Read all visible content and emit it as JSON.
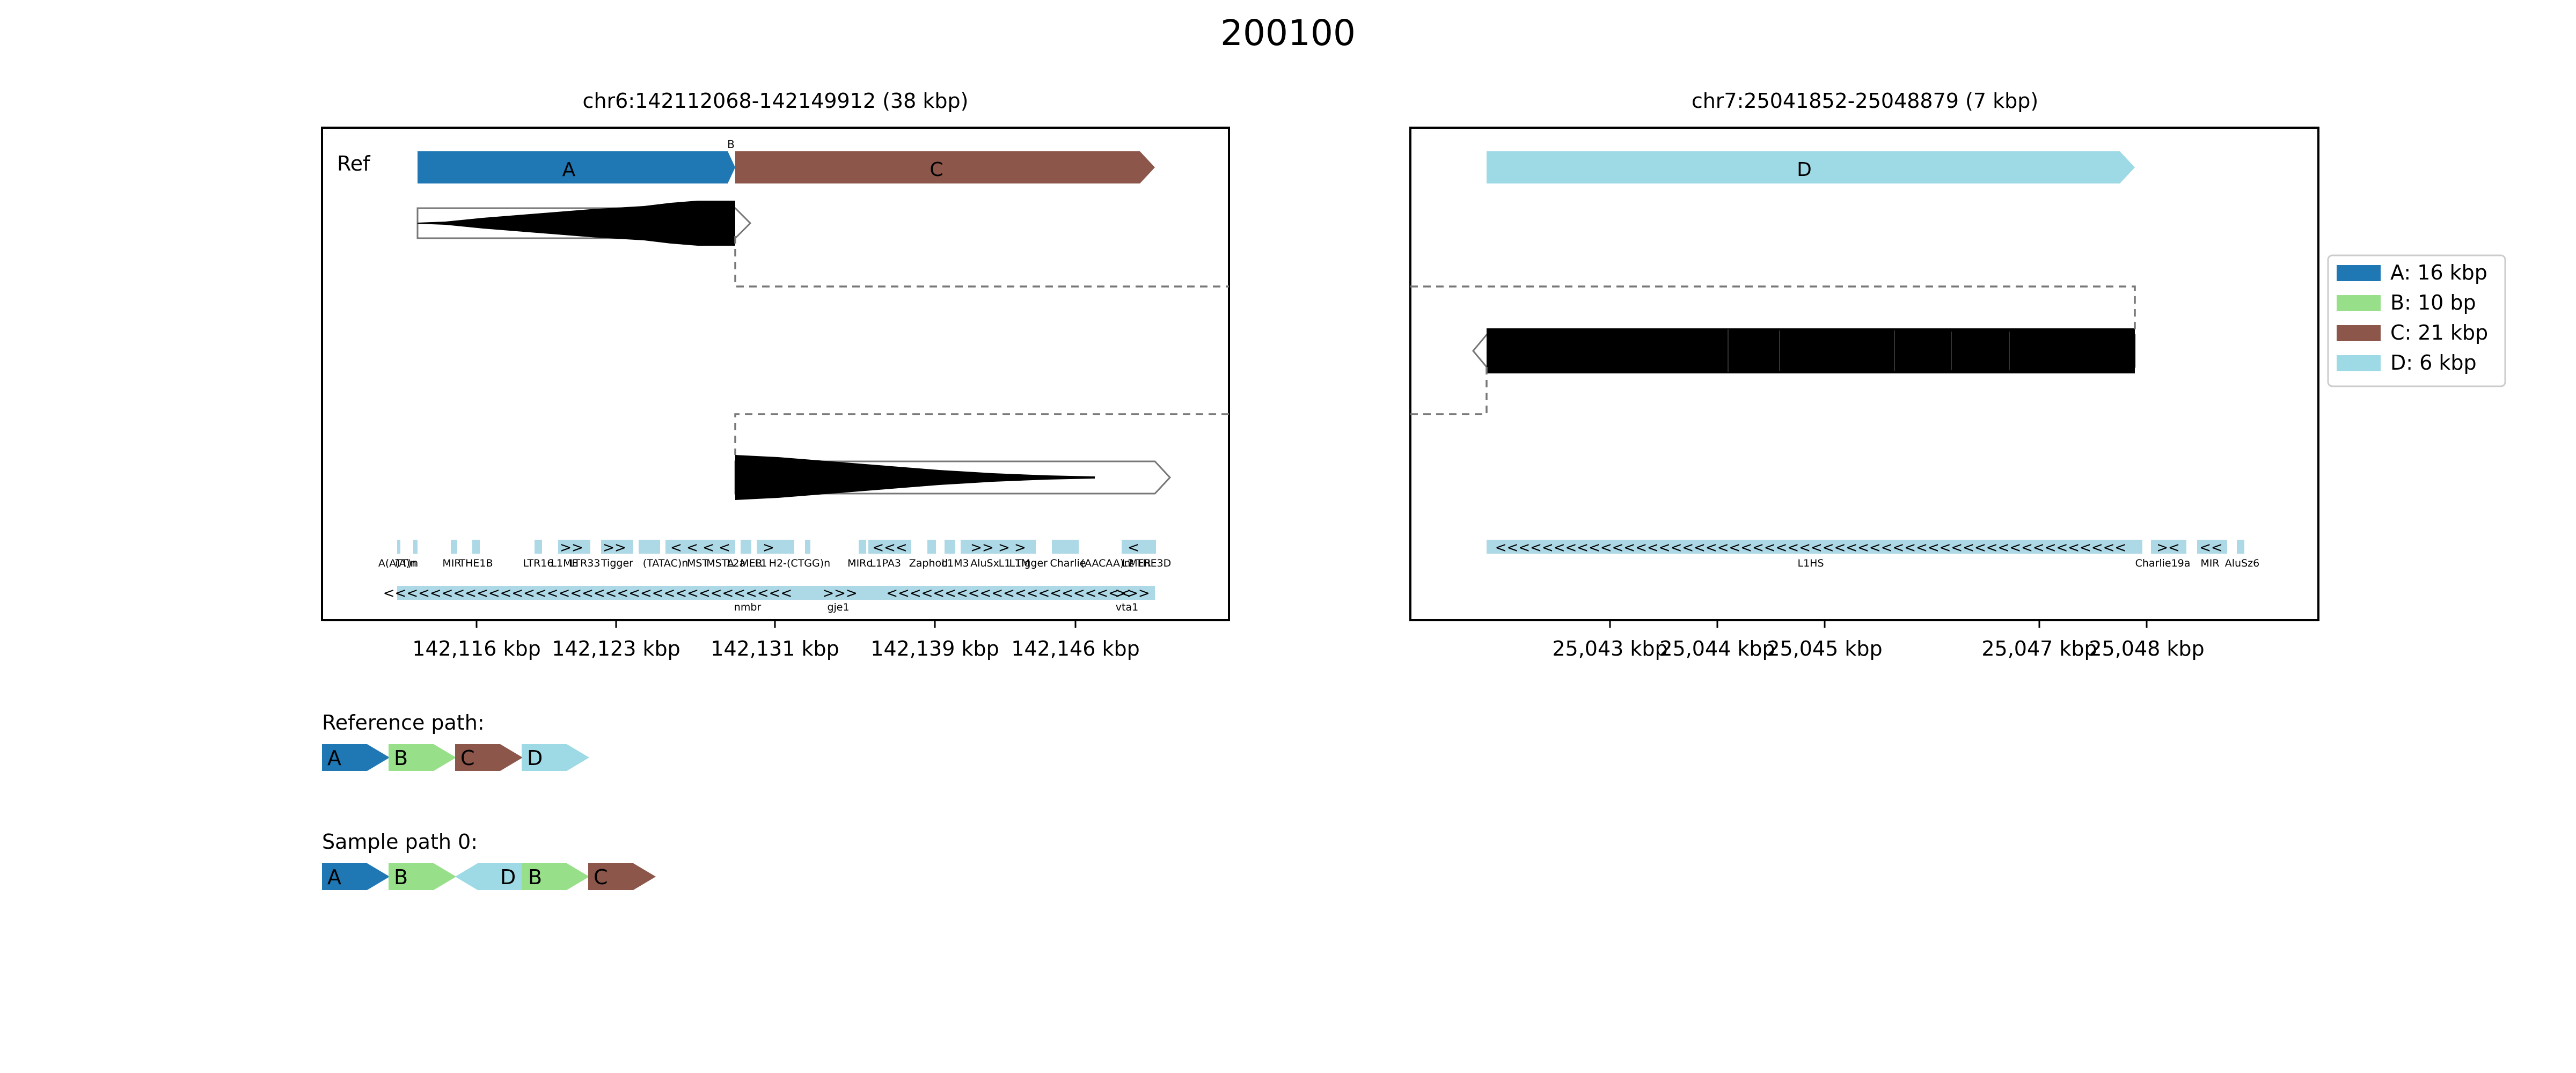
{
  "figure": {
    "title": "200100"
  },
  "left_panel": {
    "title": "chr6:142112068-142149912 (38 kbp)",
    "ref_label": "Ref",
    "segments": [
      {
        "id": "A",
        "label": "A",
        "color": "#1f77b4"
      },
      {
        "id": "B",
        "label": "B",
        "color": "#98df8a"
      },
      {
        "id": "C",
        "label": "C",
        "color": "#8c564b"
      }
    ],
    "ticks": [
      "142,116 kbp",
      "142,123 kbp",
      "142,131 kbp",
      "142,139 kbp",
      "142,146 kbp"
    ],
    "repeat_labels": [
      "A(ATT)n",
      "(A)n",
      "MIR",
      "THE1B",
      "LTR16",
      "L1ME",
      "LTR33",
      "Tigger",
      "(TATAC)n",
      "MST",
      "MSTA",
      "L2a",
      "MER",
      "L1",
      "H2-(CTGG)n",
      "MIRc",
      "L1PA3",
      "Zaphod",
      "L1M3",
      "AluSx",
      "L1",
      "L1M",
      "Tigger",
      "Charlie",
      "(AACAA)n",
      "L2",
      "MER",
      "THE3D"
    ],
    "gene_labels": [
      "nmbr",
      "gje1",
      "vta1"
    ]
  },
  "right_panel": {
    "title": "chr7:25041852-25048879 (7 kbp)",
    "segments": [
      {
        "id": "D",
        "label": "D",
        "color": "#9edae5"
      }
    ],
    "ticks": [
      "25,043 kbp",
      "25,044 kbp",
      "25,045 kbp",
      "25,047 kbp",
      "25,048 kbp"
    ],
    "repeat_labels": [
      "L1HS",
      "Charlie19a",
      "MIR",
      "AluSz6"
    ]
  },
  "legend": {
    "items": [
      {
        "label": "A: 16 kbp",
        "color": "#1f77b4"
      },
      {
        "label": "B: 10 bp",
        "color": "#98df8a"
      },
      {
        "label": "C: 21 kbp",
        "color": "#8c564b"
      },
      {
        "label": "D: 6 kbp",
        "color": "#9edae5"
      }
    ]
  },
  "paths": {
    "reference": {
      "title": "Reference path:",
      "nodes": [
        {
          "label": "A",
          "color": "#1f77b4",
          "dir": "+"
        },
        {
          "label": "B",
          "color": "#98df8a",
          "dir": "+"
        },
        {
          "label": "C",
          "color": "#8c564b",
          "dir": "+"
        },
        {
          "label": "D",
          "color": "#9edae5",
          "dir": "+"
        }
      ]
    },
    "sample": {
      "title": "Sample path 0:",
      "nodes": [
        {
          "label": "A",
          "color": "#1f77b4",
          "dir": "+"
        },
        {
          "label": "B",
          "color": "#98df8a",
          "dir": "+"
        },
        {
          "label": "D",
          "color": "#9edae5",
          "dir": "-"
        },
        {
          "label": "B",
          "color": "#98df8a",
          "dir": "+"
        },
        {
          "label": "C",
          "color": "#8c564b",
          "dir": "+"
        }
      ]
    }
  }
}
